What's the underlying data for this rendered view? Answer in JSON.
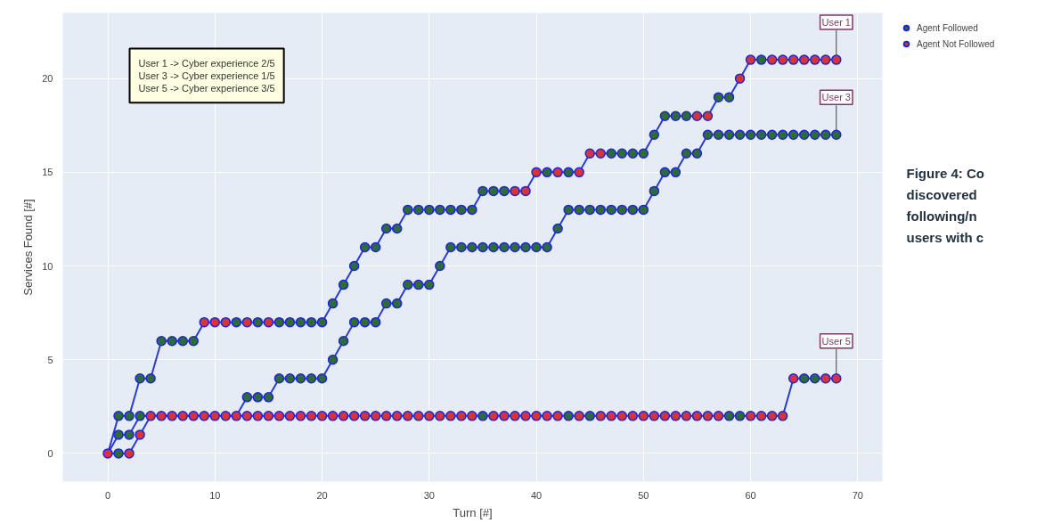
{
  "chart_data": {
    "type": "line",
    "xlabel": "Turn [#]",
    "ylabel": "Services Found [#]",
    "x": [
      0,
      1,
      2,
      3,
      4,
      5,
      6,
      7,
      8,
      9,
      10,
      11,
      12,
      13,
      14,
      15,
      16,
      17,
      18,
      19,
      20,
      21,
      22,
      23,
      24,
      25,
      26,
      27,
      28,
      29,
      30,
      31,
      32,
      33,
      34,
      35,
      36,
      37,
      38,
      39,
      40,
      41,
      42,
      43,
      44,
      45,
      46,
      47,
      48,
      49,
      50,
      51,
      52,
      53,
      54,
      55,
      56,
      57,
      58,
      59,
      60,
      61,
      62,
      63,
      64,
      65,
      66,
      67,
      68
    ],
    "series": [
      {
        "name": "User 1",
        "marker": "none",
        "color": "#2b3ccf",
        "values": [
          0,
          2,
          2,
          4,
          4,
          6,
          6,
          6,
          6,
          7,
          7,
          7,
          7,
          7,
          7,
          7,
          7,
          7,
          7,
          7,
          7,
          8,
          9,
          10,
          11,
          11,
          12,
          12,
          13,
          13,
          13,
          13,
          13,
          13,
          13,
          14,
          14,
          14,
          14,
          14,
          15,
          15,
          15,
          15,
          15,
          16,
          16,
          16,
          16,
          16,
          16,
          17,
          18,
          18,
          18,
          18,
          18,
          19,
          19,
          20,
          21,
          21,
          21,
          21,
          21,
          21,
          21,
          21,
          21
        ]
      },
      {
        "name": "User 3",
        "marker": "none",
        "color": "#2b3ccf",
        "values": [
          0,
          1,
          1,
          2,
          2,
          2,
          2,
          2,
          2,
          2,
          2,
          2,
          2,
          3,
          3,
          3,
          4,
          4,
          4,
          4,
          4,
          5,
          6,
          7,
          7,
          7,
          8,
          8,
          9,
          9,
          9,
          10,
          11,
          11,
          11,
          11,
          11,
          11,
          11,
          11,
          11,
          11,
          12,
          13,
          13,
          13,
          13,
          13,
          13,
          13,
          13,
          14,
          15,
          15,
          16,
          16,
          17,
          17,
          17,
          17,
          17,
          17,
          17,
          17,
          17,
          17,
          17,
          17,
          17
        ]
      },
      {
        "name": "User 5",
        "marker": "none",
        "color": "#2b3ccf",
        "values": [
          0,
          0,
          0,
          1,
          2,
          2,
          2,
          2,
          2,
          2,
          2,
          2,
          2,
          2,
          2,
          2,
          2,
          2,
          2,
          2,
          2,
          2,
          2,
          2,
          2,
          2,
          2,
          2,
          2,
          2,
          2,
          2,
          2,
          2,
          2,
          2,
          2,
          2,
          2,
          2,
          2,
          2,
          2,
          2,
          2,
          2,
          2,
          2,
          2,
          2,
          2,
          2,
          2,
          2,
          2,
          2,
          2,
          2,
          2,
          2,
          2,
          2,
          2,
          2,
          4,
          4,
          4,
          4,
          4
        ]
      },
      {
        "name": "Agent Followed",
        "type": "scatter",
        "marker": "circle",
        "color": "#2e6b3a",
        "x": [
          1,
          2,
          3,
          4,
          5,
          6,
          7,
          8,
          12,
          14,
          16,
          17,
          18,
          19,
          20,
          21,
          22,
          23,
          24,
          25,
          26,
          27,
          28,
          29,
          30,
          31,
          32,
          33,
          34,
          35,
          36,
          37,
          41,
          43,
          47,
          48,
          49,
          50,
          51,
          52,
          53,
          54,
          57,
          58,
          61,
          1,
          2,
          3,
          13,
          14,
          15,
          16,
          17,
          18,
          19,
          20,
          21,
          22,
          23,
          24,
          25,
          26,
          27,
          28,
          29,
          30,
          31,
          32,
          33,
          34,
          35,
          36,
          37,
          38,
          39,
          40,
          41,
          42,
          43,
          44,
          45,
          46,
          47,
          48,
          49,
          50,
          51,
          52,
          53,
          54,
          55,
          56,
          57,
          58,
          59,
          60,
          61,
          62,
          63,
          64,
          65,
          66,
          67,
          68,
          1,
          35,
          43,
          45,
          58,
          59,
          65,
          66
        ],
        "values": [
          2,
          2,
          4,
          4,
          6,
          6,
          6,
          6,
          7,
          7,
          7,
          7,
          7,
          7,
          7,
          8,
          9,
          10,
          11,
          11,
          12,
          12,
          13,
          13,
          13,
          13,
          13,
          13,
          13,
          14,
          14,
          14,
          15,
          15,
          16,
          16,
          16,
          16,
          17,
          18,
          18,
          18,
          19,
          19,
          21,
          1,
          1,
          2,
          3,
          3,
          3,
          4,
          4,
          4,
          4,
          4,
          5,
          6,
          7,
          7,
          7,
          8,
          8,
          9,
          9,
          9,
          10,
          11,
          11,
          11,
          11,
          11,
          11,
          11,
          11,
          11,
          11,
          12,
          13,
          13,
          13,
          13,
          13,
          13,
          13,
          13,
          14,
          15,
          15,
          16,
          16,
          17,
          17,
          17,
          17,
          17,
          17,
          17,
          17,
          17,
          17,
          17,
          17,
          17,
          0,
          2,
          2,
          2,
          2,
          2,
          4,
          4
        ]
      },
      {
        "name": "Agent Not Followed",
        "type": "scatter",
        "marker": "circle",
        "color": "#d6343c",
        "x": [
          0,
          2,
          3,
          4,
          5,
          6,
          7,
          8,
          9,
          10,
          11,
          12,
          13,
          14,
          15,
          16,
          17,
          18,
          19,
          20,
          21,
          22,
          23,
          24,
          25,
          26,
          27,
          28,
          29,
          30,
          31,
          32,
          33,
          34,
          36,
          37,
          38,
          39,
          40,
          41,
          42,
          44,
          46,
          47,
          48,
          49,
          50,
          51,
          52,
          53,
          54,
          55,
          56,
          57,
          60,
          61,
          62,
          63,
          64,
          67,
          68,
          9,
          10,
          11,
          13,
          15,
          38,
          39,
          40,
          42,
          44,
          45,
          46,
          55,
          56,
          59,
          60,
          62,
          63,
          64,
          65,
          66,
          67,
          68
        ],
        "values": [
          0,
          0,
          1,
          2,
          2,
          2,
          2,
          2,
          2,
          2,
          2,
          2,
          2,
          2,
          2,
          2,
          2,
          2,
          2,
          2,
          2,
          2,
          2,
          2,
          2,
          2,
          2,
          2,
          2,
          2,
          2,
          2,
          2,
          2,
          2,
          2,
          2,
          2,
          2,
          2,
          2,
          2,
          2,
          2,
          2,
          2,
          2,
          2,
          2,
          2,
          2,
          2,
          2,
          2,
          2,
          2,
          2,
          2,
          4,
          4,
          4,
          7,
          7,
          7,
          7,
          7,
          14,
          14,
          15,
          15,
          15,
          16,
          16,
          18,
          18,
          20,
          21,
          21,
          21,
          21,
          21,
          21,
          21,
          21
        ]
      }
    ],
    "xlim": [
      -4.2,
      72.3
    ],
    "ylim": [
      -1.5,
      23.5
    ],
    "xticks": [
      0,
      10,
      20,
      30,
      40,
      50,
      60,
      70
    ],
    "yticks": [
      0,
      5,
      10,
      15,
      20
    ],
    "grid": true,
    "legend": "top right",
    "line_style": "solid",
    "annotations": [
      "User 1 -> Cyber experience 2/5\nUser 3 -> Cyber experience 1/5\nUser 5 -> Cyber experience 3/5",
      "Figure 4: Co\ndiscovered\nfollowing/n\nusers with c"
    ]
  }
}
